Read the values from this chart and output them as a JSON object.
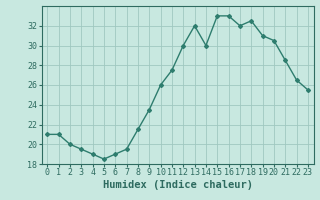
{
  "x": [
    0,
    1,
    2,
    3,
    4,
    5,
    6,
    7,
    8,
    9,
    10,
    11,
    12,
    13,
    14,
    15,
    16,
    17,
    18,
    19,
    20,
    21,
    22,
    23
  ],
  "y": [
    21.0,
    21.0,
    20.0,
    19.5,
    19.0,
    18.5,
    19.0,
    19.5,
    21.5,
    23.5,
    26.0,
    27.5,
    30.0,
    32.0,
    30.0,
    33.0,
    33.0,
    32.0,
    32.5,
    31.0,
    30.5,
    28.5,
    26.5,
    25.5
  ],
  "line_color": "#2e7d6e",
  "marker": "D",
  "marker_size": 2.0,
  "bg_color": "#c8e8e0",
  "grid_color": "#a0c8c0",
  "xlabel": "Humidex (Indice chaleur)",
  "ylim": [
    18,
    34
  ],
  "yticks": [
    18,
    20,
    22,
    24,
    26,
    28,
    30,
    32
  ],
  "xticks": [
    0,
    1,
    2,
    3,
    4,
    5,
    6,
    7,
    8,
    9,
    10,
    11,
    12,
    13,
    14,
    15,
    16,
    17,
    18,
    19,
    20,
    21,
    22,
    23
  ],
  "xtick_labels": [
    "0",
    "1",
    "2",
    "3",
    "4",
    "5",
    "6",
    "7",
    "8",
    "9",
    "10",
    "11",
    "12",
    "13",
    "14",
    "15",
    "16",
    "17",
    "18",
    "19",
    "20",
    "21",
    "22",
    "23"
  ],
  "tick_color": "#2e6b60",
  "xlabel_fontsize": 7.5,
  "tick_fontsize": 6.0,
  "linewidth": 1.0
}
